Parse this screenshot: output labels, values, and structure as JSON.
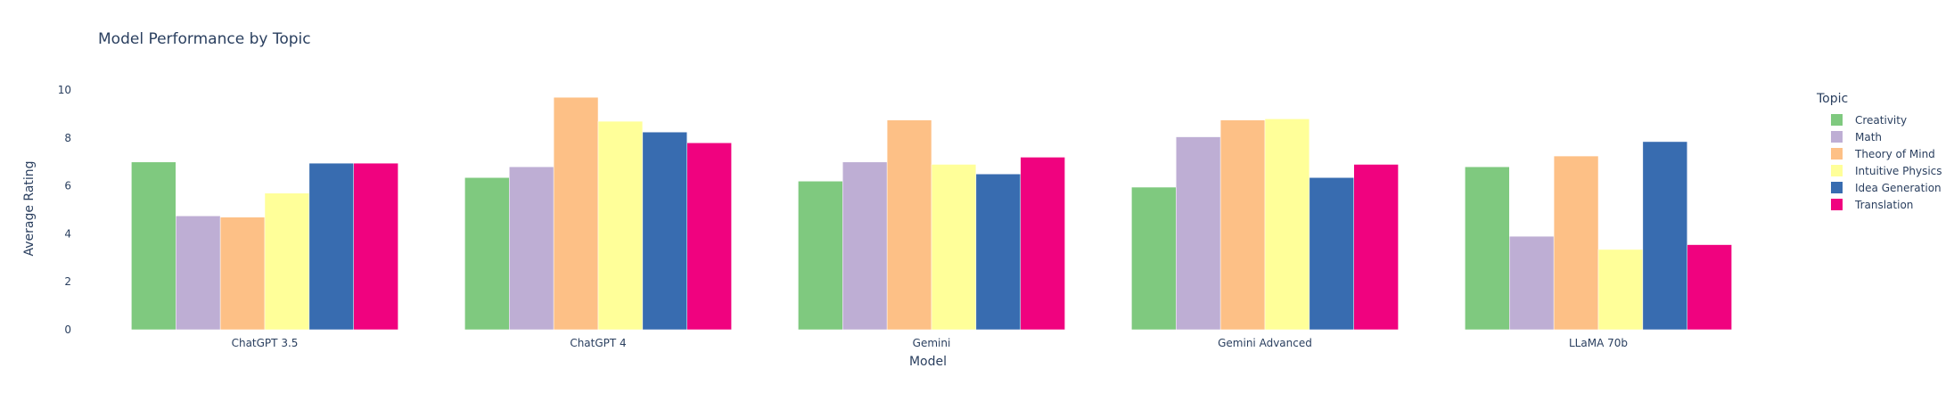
{
  "chart_data": {
    "type": "bar",
    "title": "Model Performance by Topic",
    "xlabel": "Model",
    "ylabel": "Average Rating",
    "ylim": [
      0,
      10.6
    ],
    "yticks": [
      0,
      2,
      4,
      6,
      8,
      10
    ],
    "grid": false,
    "legend_title": "Topic",
    "legend_position": "right",
    "categories": [
      "ChatGPT 3.5",
      "ChatGPT 4",
      "Gemini",
      "Gemini Advanced",
      "LLaMA 70b"
    ],
    "series": [
      {
        "name": "Creativity",
        "color": "#7fc97f",
        "values": [
          7.0,
          6.35,
          6.2,
          5.95,
          6.8
        ]
      },
      {
        "name": "Math",
        "color": "#beaed4",
        "values": [
          4.75,
          6.8,
          7.0,
          8.05,
          3.9
        ]
      },
      {
        "name": "Theory of Mind",
        "color": "#fdc086",
        "values": [
          4.7,
          9.7,
          8.75,
          8.75,
          7.25
        ]
      },
      {
        "name": "Intuitive Physics",
        "color": "#ffff99",
        "values": [
          5.7,
          8.7,
          6.9,
          8.8,
          3.35
        ]
      },
      {
        "name": "Idea Generation",
        "color": "#386cb0",
        "values": [
          6.95,
          8.25,
          6.5,
          6.35,
          7.85
        ]
      },
      {
        "name": "Translation",
        "color": "#f0027f",
        "values": [
          6.95,
          7.8,
          7.2,
          6.9,
          3.55
        ]
      }
    ]
  }
}
